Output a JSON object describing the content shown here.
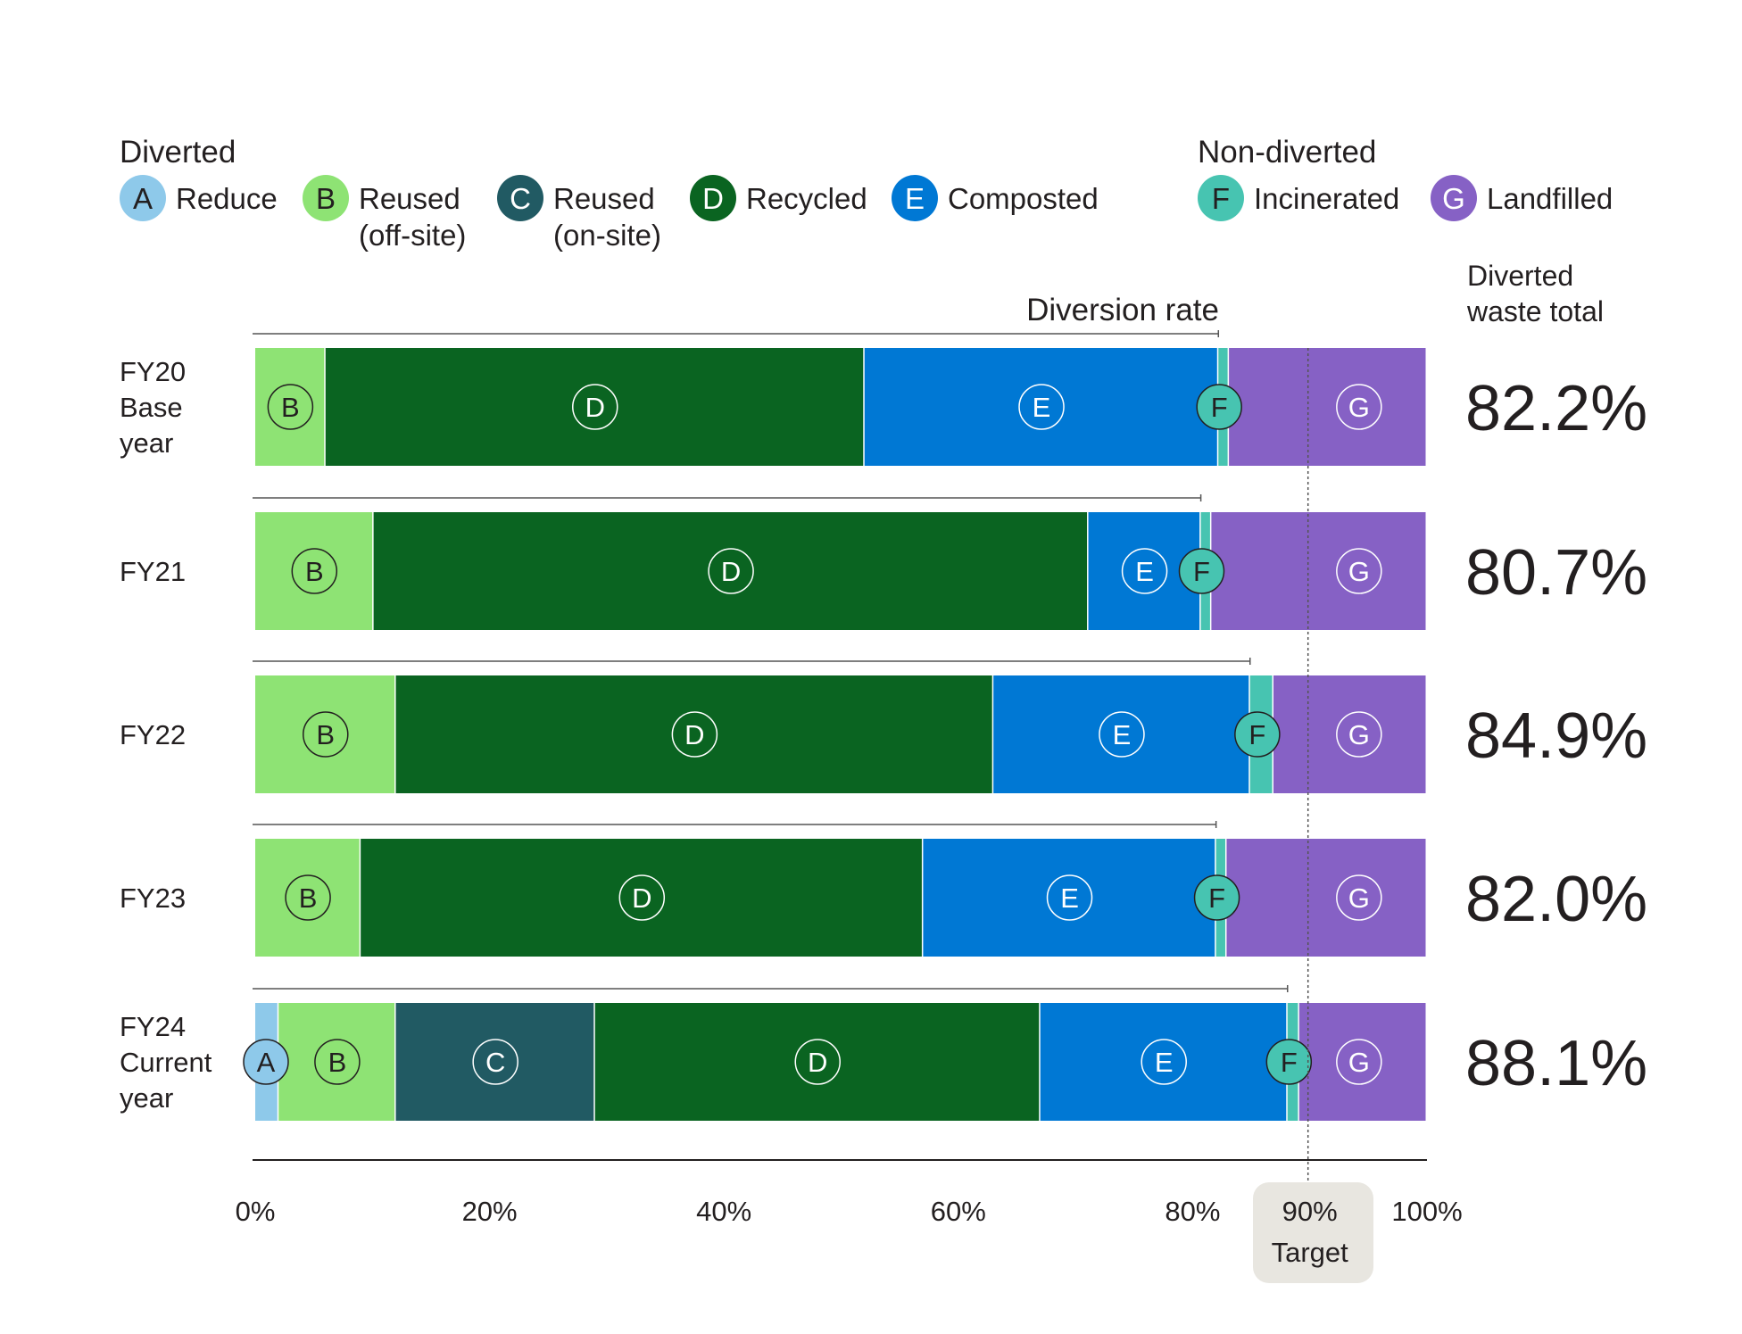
{
  "chart_data": {
    "type": "bar",
    "orientation": "horizontal",
    "stacked": true,
    "legend_groups": [
      {
        "title": "Diverted",
        "keys": [
          "A",
          "B",
          "C",
          "D",
          "E"
        ]
      },
      {
        "title": "Non-diverted",
        "keys": [
          "F",
          "G"
        ]
      }
    ],
    "series": [
      {
        "key": "A",
        "name": "Reduce",
        "name_line2": "",
        "color": "#8ec9ea",
        "values": [
          0,
          0,
          0,
          0,
          2.0
        ]
      },
      {
        "key": "B",
        "name": "Reused",
        "name_line2": "(off-site)",
        "color": "#8ee374",
        "values": [
          6.0,
          10.1,
          12.0,
          9.0,
          10.0
        ]
      },
      {
        "key": "C",
        "name": "Reused",
        "name_line2": "(on-site)",
        "color": "#215a63",
        "values": [
          0,
          0,
          0,
          0,
          17.0
        ]
      },
      {
        "key": "D",
        "name": "Recycled",
        "name_line2": "",
        "color": "#0a6421",
        "values": [
          46.0,
          61.0,
          51.0,
          48.0,
          38.0
        ]
      },
      {
        "key": "E",
        "name": "Composted",
        "name_line2": "",
        "color": "#0078d4",
        "values": [
          30.2,
          9.6,
          21.9,
          25.0,
          21.1
        ]
      },
      {
        "key": "F",
        "name": "Incinerated",
        "name_line2": "",
        "color": "#47c4b1",
        "values": [
          0.9,
          0.9,
          2.0,
          0.9,
          1.0
        ]
      },
      {
        "key": "G",
        "name": "Landfilled",
        "name_line2": "",
        "color": "#8661c5",
        "values": [
          16.9,
          18.4,
          13.1,
          17.1,
          10.9
        ]
      }
    ],
    "categories": [
      {
        "lines": [
          "FY20",
          "Base",
          "year"
        ]
      },
      {
        "lines": [
          "FY21"
        ]
      },
      {
        "lines": [
          "FY22"
        ]
      },
      {
        "lines": [
          "FY23"
        ]
      },
      {
        "lines": [
          "FY24",
          "Current",
          "year"
        ]
      }
    ],
    "diversion_rate_label": "Diversion rate",
    "diverted_total_header": [
      "Diverted",
      "waste total"
    ],
    "diverted_totals": [
      "82.2%",
      "80.7%",
      "84.9%",
      "82.0%",
      "88.1%"
    ],
    "diversion_rates": [
      82.2,
      80.7,
      84.9,
      82.0,
      88.1
    ],
    "xlim": [
      0,
      100
    ],
    "xticks": [
      "0%",
      "20%",
      "40%",
      "60%",
      "80%",
      "90%",
      "100%"
    ],
    "xtick_values": [
      0,
      20,
      40,
      60,
      80,
      90,
      100
    ],
    "target": {
      "value": 90,
      "label": "Target"
    },
    "grid": false
  }
}
